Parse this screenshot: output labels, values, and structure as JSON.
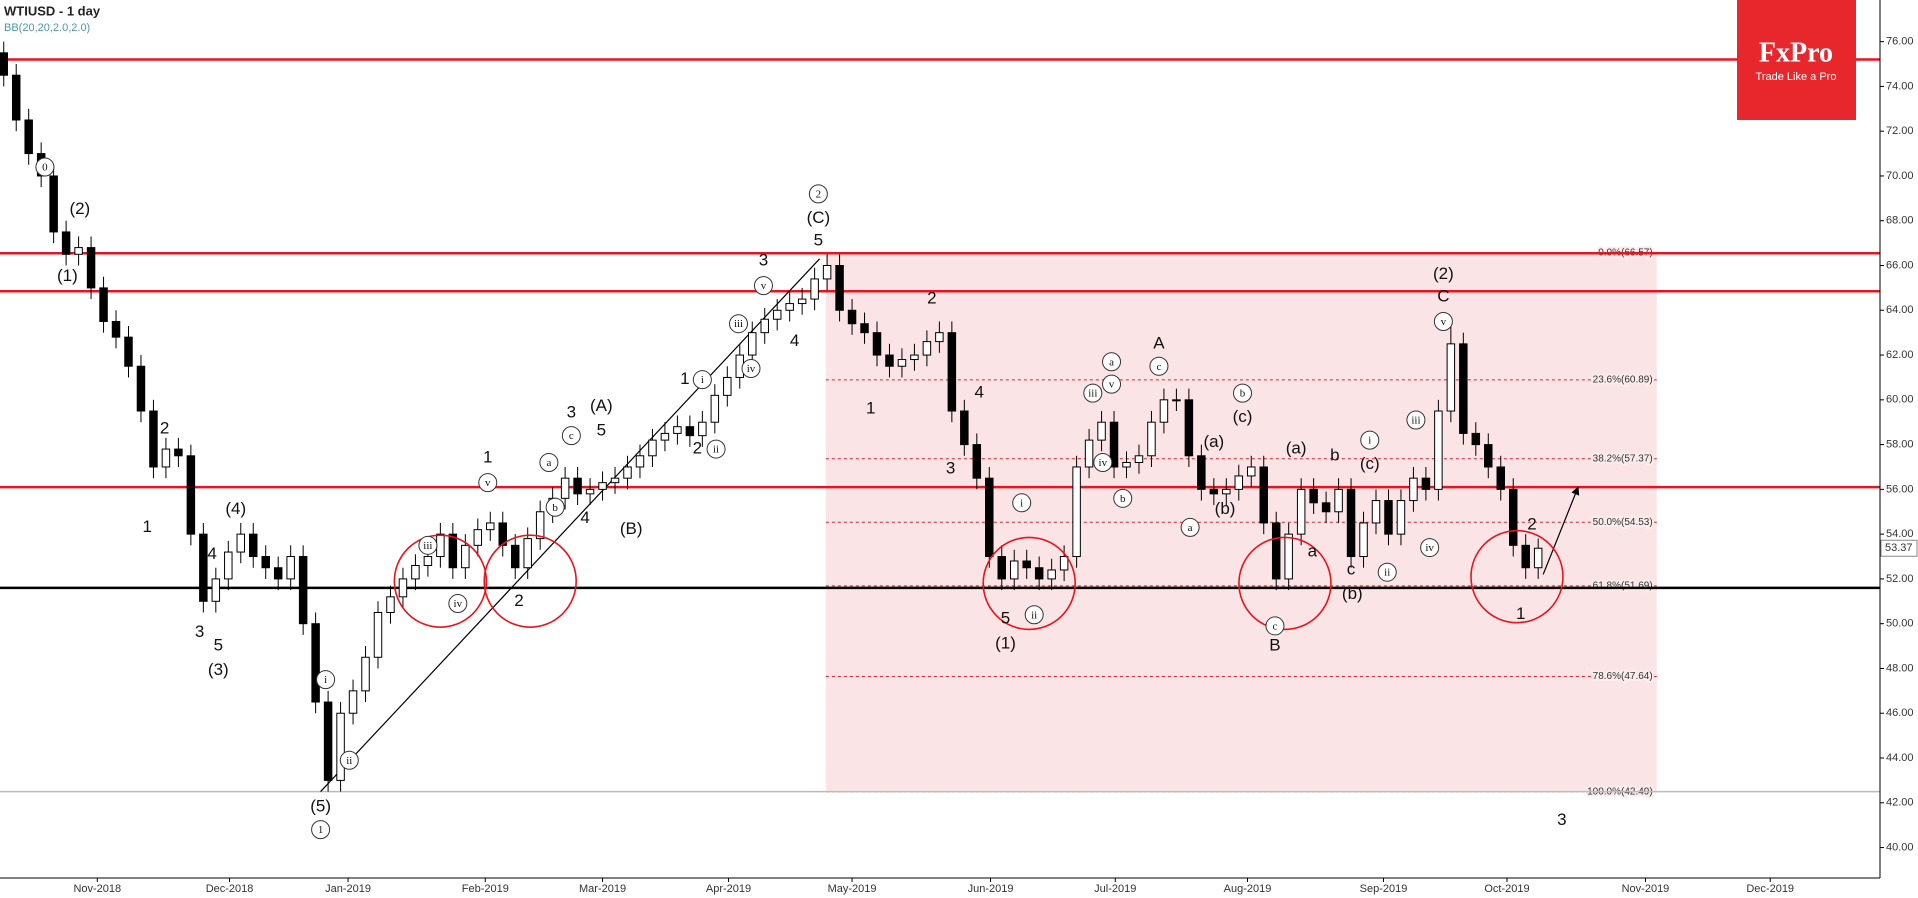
{
  "logo": {
    "name": "FxPro",
    "tagline": "Trade Like a Pro"
  },
  "chart_data": {
    "type": "candlestick",
    "title": "WTIUSD - 1 day",
    "subtitle": "BB(20,20,2.0,2.0)",
    "colors": {
      "up": "#ffffff",
      "down": "#000000",
      "wick": "#000000"
    },
    "open": [
      75.5,
      74.5,
      72.5,
      71.0,
      70.0,
      67.5,
      66.5,
      66.8,
      65.0,
      63.5,
      62.8,
      61.5,
      59.5,
      57.0,
      57.8,
      57.5,
      54.0,
      51.0,
      52.0,
      53.2,
      54.0,
      53.0,
      52.5,
      52.0,
      53.0,
      50.0,
      46.5,
      43.0,
      46.0,
      47.0,
      48.5,
      50.5,
      51.2,
      52.0,
      52.6,
      53.0,
      54.0,
      52.5,
      53.5,
      54.2,
      54.5,
      53.5,
      52.5,
      53.8,
      55.0,
      55.6,
      56.5,
      55.8,
      56.0,
      56.3,
      56.5,
      57.0,
      57.5,
      58.2,
      58.5,
      58.8,
      58.4,
      59.0,
      60.2,
      61.0,
      62.0,
      63.0,
      63.6,
      64.0,
      64.3,
      64.5,
      65.4,
      66.0,
      64.0,
      63.4,
      63.0,
      62.0,
      61.5,
      61.8,
      62.0,
      62.6,
      63.0,
      59.5,
      58.0,
      56.5,
      53.0,
      52.0,
      52.8,
      52.5,
      52.0,
      52.4,
      53.0,
      57.0,
      58.2,
      59.0,
      57.0,
      57.2,
      57.5,
      59.0,
      60.0,
      60.0,
      57.5,
      56.0,
      55.8,
      56.0,
      56.6,
      57.0,
      54.5,
      52.0,
      54.0,
      56.0,
      55.4,
      55.0,
      56.0,
      53.0,
      54.5,
      55.5,
      54.0,
      55.5,
      56.5,
      56.0,
      59.5,
      62.5,
      58.5,
      58.0,
      57.0,
      56.0,
      53.5,
      52.5
    ],
    "high": [
      76.0,
      75.0,
      73.0,
      71.5,
      70.5,
      68.0,
      67.3,
      67.3,
      65.5,
      64.0,
      63.3,
      62.0,
      60.0,
      58.3,
      58.3,
      58.0,
      54.5,
      52.5,
      53.7,
      54.5,
      54.5,
      53.5,
      53.0,
      53.5,
      53.5,
      50.5,
      47.0,
      46.5,
      47.5,
      49.0,
      51.0,
      51.7,
      52.5,
      53.1,
      53.5,
      54.5,
      54.5,
      54.0,
      54.7,
      55.0,
      55.0,
      54.0,
      54.3,
      55.5,
      56.1,
      57.0,
      57.0,
      56.5,
      56.8,
      57.0,
      57.5,
      58.0,
      58.7,
      59.0,
      59.3,
      59.3,
      59.5,
      60.7,
      61.5,
      62.5,
      63.5,
      64.1,
      64.5,
      64.8,
      65.0,
      65.9,
      66.5,
      66.5,
      64.5,
      63.9,
      63.5,
      62.5,
      62.3,
      62.5,
      63.1,
      63.5,
      63.5,
      60.0,
      58.5,
      57.0,
      53.5,
      53.3,
      53.3,
      53.0,
      52.9,
      53.5,
      57.5,
      58.7,
      59.5,
      59.5,
      57.7,
      58.0,
      59.5,
      60.5,
      60.5,
      60.5,
      58.0,
      56.5,
      56.5,
      57.1,
      57.5,
      57.5,
      55.0,
      54.5,
      56.5,
      56.5,
      55.9,
      56.5,
      56.5,
      55.0,
      56.0,
      56.0,
      56.0,
      57.0,
      57.0,
      60.0,
      63.5,
      63.0,
      59.0,
      58.5,
      57.5,
      56.5,
      54.0,
      53.8
    ],
    "low": [
      74.0,
      72.0,
      70.5,
      69.5,
      67.0,
      66.0,
      66.0,
      64.5,
      63.0,
      62.3,
      61.0,
      59.0,
      56.5,
      56.5,
      57.0,
      53.5,
      50.5,
      50.5,
      51.5,
      52.7,
      52.5,
      52.0,
      51.5,
      51.5,
      49.5,
      46.0,
      42.5,
      42.5,
      45.5,
      46.5,
      48.0,
      50.0,
      50.7,
      51.5,
      52.1,
      52.5,
      52.0,
      52.0,
      53.0,
      53.7,
      53.0,
      52.0,
      52.0,
      53.3,
      54.5,
      55.1,
      55.3,
      55.3,
      55.5,
      55.8,
      56.0,
      56.5,
      57.0,
      57.7,
      58.0,
      57.9,
      57.9,
      58.5,
      59.7,
      60.5,
      61.5,
      62.5,
      63.1,
      63.5,
      63.8,
      64.0,
      64.9,
      63.5,
      62.9,
      62.5,
      61.5,
      61.0,
      61.0,
      61.3,
      61.5,
      62.1,
      59.0,
      57.5,
      56.0,
      52.5,
      51.5,
      51.5,
      52.0,
      51.5,
      51.5,
      51.9,
      52.5,
      56.5,
      57.7,
      56.5,
      56.5,
      56.7,
      57.0,
      58.5,
      59.5,
      57.0,
      55.5,
      55.3,
      55.3,
      55.5,
      56.1,
      54.0,
      51.5,
      51.5,
      53.5,
      54.9,
      54.5,
      54.5,
      52.5,
      52.5,
      54.0,
      53.5,
      53.5,
      55.0,
      55.5,
      55.5,
      59.0,
      58.0,
      57.5,
      56.5,
      55.5,
      53.0,
      52.0,
      52.0
    ],
    "close": [
      74.5,
      72.5,
      71.0,
      70.0,
      67.5,
      66.5,
      66.8,
      65.0,
      63.5,
      62.8,
      61.5,
      59.5,
      57.0,
      57.8,
      57.5,
      54.0,
      51.0,
      52.0,
      53.2,
      54.0,
      53.0,
      52.5,
      52.0,
      53.0,
      50.0,
      46.5,
      43.0,
      46.0,
      47.0,
      48.5,
      50.5,
      51.2,
      52.0,
      52.6,
      53.0,
      54.0,
      52.5,
      53.5,
      54.2,
      54.5,
      53.5,
      52.5,
      53.8,
      55.0,
      55.6,
      56.5,
      55.8,
      56.0,
      56.3,
      56.5,
      57.0,
      57.5,
      58.2,
      58.5,
      58.8,
      58.4,
      59.0,
      60.2,
      61.0,
      62.0,
      63.0,
      63.6,
      64.0,
      64.3,
      64.5,
      65.4,
      66.0,
      64.0,
      63.4,
      63.0,
      62.0,
      61.5,
      61.8,
      62.0,
      62.6,
      63.0,
      59.5,
      58.0,
      56.5,
      53.0,
      52.0,
      52.8,
      52.5,
      52.0,
      52.4,
      53.0,
      57.0,
      58.2,
      59.0,
      57.0,
      57.2,
      57.5,
      59.0,
      60.0,
      60.0,
      57.5,
      56.0,
      55.8,
      56.0,
      56.6,
      57.0,
      54.5,
      52.0,
      54.0,
      56.0,
      55.4,
      55.0,
      56.0,
      53.0,
      54.5,
      55.5,
      54.0,
      55.5,
      56.5,
      56.0,
      59.5,
      62.5,
      58.5,
      58.0,
      57.0,
      56.0,
      53.5,
      52.5,
      53.37
    ],
    "xlim": [
      0,
      150.7
    ],
    "xticks": [
      {
        "value": 7.8,
        "label": "Nov-2018"
      },
      {
        "value": 18.4,
        "label": "Dec-2018"
      },
      {
        "value": 27.9,
        "label": "Jan-2019"
      },
      {
        "value": 38.9,
        "label": "Feb-2019"
      },
      {
        "value": 48.3,
        "label": "Mar-2019"
      },
      {
        "value": 58.4,
        "label": "Apr-2019"
      },
      {
        "value": 68.3,
        "label": "May-2019"
      },
      {
        "value": 79.4,
        "label": "Jun-2019"
      },
      {
        "value": 89.4,
        "label": "Jul-2019"
      },
      {
        "value": 100,
        "label": "Aug-2019"
      },
      {
        "value": 110.9,
        "label": "Sep-2019"
      },
      {
        "value": 120.8,
        "label": "Oct-2019"
      },
      {
        "value": 131.9,
        "label": "Nov-2019"
      },
      {
        "value": 141.9,
        "label": "Dec-2019"
      }
    ],
    "ylim": [
      38.64,
      77.86
    ],
    "yticks": [
      {
        "value": 40,
        "label": "40.00"
      },
      {
        "value": 42,
        "label": "42.00"
      },
      {
        "value": 44,
        "label": "44.00"
      },
      {
        "value": 46,
        "label": "46.00"
      },
      {
        "value": 48,
        "label": "48.00"
      },
      {
        "value": 50,
        "label": "50.00"
      },
      {
        "value": 52,
        "label": "52.00"
      },
      {
        "value": 54,
        "label": "54.00"
      },
      {
        "value": 56,
        "label": "56.00"
      },
      {
        "value": 58,
        "label": "58.00"
      },
      {
        "value": 60,
        "label": "60.00"
      },
      {
        "value": 62,
        "label": "62.00"
      },
      {
        "value": 64,
        "label": "64.00"
      },
      {
        "value": 66,
        "label": "66.00"
      },
      {
        "value": 68,
        "label": "68.00"
      },
      {
        "value": 70,
        "label": "70.00"
      },
      {
        "value": 72,
        "label": "72.00"
      },
      {
        "value": 74,
        "label": "74.00"
      },
      {
        "value": 76,
        "label": "76.00"
      }
    ],
    "horizontal_lines": [
      {
        "value": 75.2,
        "color": "#e8141b"
      },
      {
        "value": 66.55,
        "color": "#e8141b"
      },
      {
        "value": 64.85,
        "color": "#e8141b"
      },
      {
        "value": 56.1,
        "color": "#e8141b"
      },
      {
        "value": 51.6,
        "color": "#000000"
      },
      {
        "value": 42.5,
        "color": "#bbbbbb"
      }
    ],
    "fib_retracement": {
      "x": [
        66.2,
        132.8
      ],
      "color": "#d9252a",
      "levels": [
        {
          "value": 66.57,
          "label": "0.0%(66.57)"
        },
        {
          "value": 60.89,
          "label": "23.6%(60.89)"
        },
        {
          "value": 57.37,
          "label": "38.2%(57.37)"
        },
        {
          "value": 54.53,
          "label": "50.0%(54.53)"
        },
        {
          "value": 51.69,
          "label": "61.8%(51.69)"
        },
        {
          "value": 47.64,
          "label": "78.6%(47.64)"
        },
        {
          "value": 42.49,
          "label": "100.0%(42.49)"
        }
      ]
    },
    "trend_lines": [
      {
        "x": [
          25.7,
          65.7
        ],
        "y": [
          42.5,
          66.3
        ],
        "color": "#000000",
        "arrow": false
      },
      {
        "x": [
          123.7,
          126.5
        ],
        "y": [
          52.2,
          56.1
        ],
        "color": "#000000",
        "arrow": true
      }
    ],
    "highlights": [
      {
        "x": 35.3,
        "y": 51.9
      },
      {
        "x": 42.5,
        "y": 51.9
      },
      {
        "x": 82.5,
        "y": 51.8
      },
      {
        "x": 103.0,
        "y": 51.8
      },
      {
        "x": 121.6,
        "y": 52.1
      }
    ],
    "annotations": [
      {
        "text": "0",
        "x": 3.6,
        "y": 70.4,
        "circled": true
      },
      {
        "text": "(2)",
        "x": 6.4,
        "y": 68.5,
        "circled": false
      },
      {
        "text": "(1)",
        "x": 5.4,
        "y": 65.5,
        "circled": false
      },
      {
        "text": "2",
        "x": 13.2,
        "y": 58.7,
        "circled": false
      },
      {
        "text": "1",
        "x": 11.8,
        "y": 54.3,
        "circled": false
      },
      {
        "text": "(4)",
        "x": 18.9,
        "y": 55.1,
        "circled": false
      },
      {
        "text": "4",
        "x": 17.0,
        "y": 53.1,
        "circled": false
      },
      {
        "text": "3",
        "x": 16.0,
        "y": 49.6,
        "circled": false
      },
      {
        "text": "5",
        "x": 17.5,
        "y": 49.0,
        "circled": false
      },
      {
        "text": "(3)",
        "x": 17.5,
        "y": 47.9,
        "circled": false
      },
      {
        "text": "i",
        "x": 26.1,
        "y": 47.5,
        "circled": true
      },
      {
        "text": "ii",
        "x": 28.0,
        "y": 43.9,
        "circled": true
      },
      {
        "text": "(5)",
        "x": 25.7,
        "y": 41.8,
        "circled": false
      },
      {
        "text": "1",
        "x": 25.7,
        "y": 40.8,
        "circled": true
      },
      {
        "text": "iii",
        "x": 34.3,
        "y": 53.5,
        "circled": true
      },
      {
        "text": "iv",
        "x": 36.7,
        "y": 50.9,
        "circled": true
      },
      {
        "text": "v",
        "x": 39.1,
        "y": 56.3,
        "circled": true
      },
      {
        "text": "1",
        "x": 39.1,
        "y": 57.4,
        "circled": false
      },
      {
        "text": "2",
        "x": 41.6,
        "y": 51.0,
        "circled": false
      },
      {
        "text": "a",
        "x": 44.0,
        "y": 57.2,
        "circled": true
      },
      {
        "text": "b",
        "x": 44.5,
        "y": 55.2,
        "circled": true
      },
      {
        "text": "c",
        "x": 45.8,
        "y": 58.4,
        "circled": true
      },
      {
        "text": "3",
        "x": 45.8,
        "y": 59.4,
        "circled": false
      },
      {
        "text": "5",
        "x": 48.2,
        "y": 58.6,
        "circled": false
      },
      {
        "text": "(A)",
        "x": 48.2,
        "y": 59.7,
        "circled": false
      },
      {
        "text": "4",
        "x": 46.9,
        "y": 54.7,
        "circled": false
      },
      {
        "text": "(B)",
        "x": 50.6,
        "y": 54.2,
        "circled": false
      },
      {
        "text": "1",
        "x": 54.9,
        "y": 60.9,
        "circled": false
      },
      {
        "text": "i",
        "x": 56.3,
        "y": 60.9,
        "circled": true
      },
      {
        "text": "2",
        "x": 55.9,
        "y": 57.8,
        "circled": false
      },
      {
        "text": "ii",
        "x": 57.4,
        "y": 57.8,
        "circled": true
      },
      {
        "text": "iii",
        "x": 59.2,
        "y": 63.4,
        "circled": true
      },
      {
        "text": "iv",
        "x": 60.2,
        "y": 61.4,
        "circled": true
      },
      {
        "text": "v",
        "x": 61.2,
        "y": 65.1,
        "circled": true
      },
      {
        "text": "3",
        "x": 61.2,
        "y": 66.2,
        "circled": false
      },
      {
        "text": "4",
        "x": 63.7,
        "y": 62.6,
        "circled": false
      },
      {
        "text": "5",
        "x": 65.6,
        "y": 67.1,
        "circled": false
      },
      {
        "text": "(C)",
        "x": 65.6,
        "y": 68.1,
        "circled": false
      },
      {
        "text": "2",
        "x": 65.6,
        "y": 69.2,
        "circled": true
      },
      {
        "text": "2",
        "x": 74.7,
        "y": 64.5,
        "circled": false
      },
      {
        "text": "1",
        "x": 69.8,
        "y": 59.6,
        "circled": false
      },
      {
        "text": "4",
        "x": 78.5,
        "y": 60.3,
        "circled": false
      },
      {
        "text": "3",
        "x": 76.2,
        "y": 56.9,
        "circled": false
      },
      {
        "text": "5",
        "x": 80.6,
        "y": 50.2,
        "circled": false
      },
      {
        "text": "(1)",
        "x": 80.6,
        "y": 49.1,
        "circled": false
      },
      {
        "text": "i",
        "x": 81.9,
        "y": 55.4,
        "circled": true
      },
      {
        "text": "ii",
        "x": 82.9,
        "y": 50.4,
        "circled": true
      },
      {
        "text": "a",
        "x": 89.1,
        "y": 61.7,
        "circled": true
      },
      {
        "text": "iii",
        "x": 87.6,
        "y": 60.3,
        "circled": true
      },
      {
        "text": "v",
        "x": 89.1,
        "y": 60.7,
        "circled": true
      },
      {
        "text": "iv",
        "x": 88.4,
        "y": 57.2,
        "circled": true
      },
      {
        "text": "b",
        "x": 90.0,
        "y": 55.6,
        "circled": true
      },
      {
        "text": "A",
        "x": 92.9,
        "y": 62.5,
        "circled": false
      },
      {
        "text": "c",
        "x": 92.9,
        "y": 61.5,
        "circled": true
      },
      {
        "text": "a",
        "x": 95.4,
        "y": 54.3,
        "circled": true
      },
      {
        "text": "(a)",
        "x": 97.3,
        "y": 58.1,
        "circled": false
      },
      {
        "text": "(b)",
        "x": 98.2,
        "y": 55.1,
        "circled": false
      },
      {
        "text": "b",
        "x": 99.6,
        "y": 60.3,
        "circled": true
      },
      {
        "text": "(c)",
        "x": 99.6,
        "y": 59.2,
        "circled": false
      },
      {
        "text": "c",
        "x": 102.2,
        "y": 49.9,
        "circled": true
      },
      {
        "text": "B",
        "x": 102.2,
        "y": 49.0,
        "circled": false
      },
      {
        "text": "(a)",
        "x": 103.9,
        "y": 57.8,
        "circled": false
      },
      {
        "text": "a",
        "x": 105.2,
        "y": 53.2,
        "circled": false
      },
      {
        "text": "b",
        "x": 107.0,
        "y": 57.5,
        "circled": false
      },
      {
        "text": "(b)",
        "x": 108.4,
        "y": 51.3,
        "circled": false
      },
      {
        "text": "c",
        "x": 108.3,
        "y": 52.4,
        "circled": false
      },
      {
        "text": "i",
        "x": 109.8,
        "y": 58.2,
        "circled": true
      },
      {
        "text": "(c)",
        "x": 109.8,
        "y": 57.1,
        "circled": false
      },
      {
        "text": "ii",
        "x": 111.2,
        "y": 52.3,
        "circled": true
      },
      {
        "text": "iii",
        "x": 113.5,
        "y": 59.1,
        "circled": true
      },
      {
        "text": "iv",
        "x": 114.6,
        "y": 53.4,
        "circled": true
      },
      {
        "text": "v",
        "x": 115.7,
        "y": 63.5,
        "circled": true
      },
      {
        "text": "C",
        "x": 115.7,
        "y": 64.6,
        "circled": false
      },
      {
        "text": "(2)",
        "x": 115.7,
        "y": 65.6,
        "circled": false
      },
      {
        "text": "2",
        "x": 122.8,
        "y": 54.4,
        "circled": false
      },
      {
        "text": "1",
        "x": 121.9,
        "y": 50.4,
        "circled": false
      },
      {
        "text": "3",
        "x": 125.2,
        "y": 41.2,
        "circled": false
      }
    ]
  }
}
